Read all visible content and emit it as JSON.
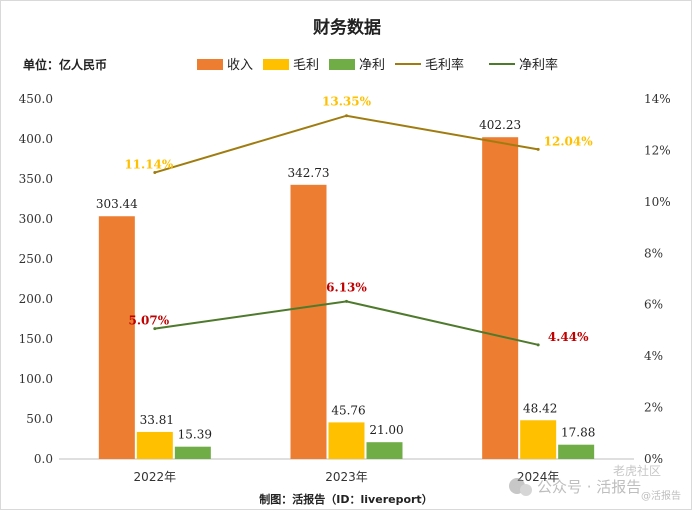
{
  "chart_data": {
    "type": "bar",
    "title": "财务数据",
    "unit_label": "单位：亿人民币",
    "credit": "制图：活报告（ID：livereport）",
    "watermark": "公众号 · 活报告",
    "watermark_corner": "@活报告",
    "watermark_small": "老虎社区",
    "categories": [
      "2022年",
      "2023年",
      "2024年"
    ],
    "series": [
      {
        "name": "收入",
        "kind": "bar",
        "axis": "left",
        "color": "#ED7D31",
        "values": [
          303.44,
          342.73,
          402.23
        ],
        "labels": [
          "303.44",
          "342.73",
          "402.23"
        ]
      },
      {
        "name": "毛利",
        "kind": "bar",
        "axis": "left",
        "color": "#FFC000",
        "values": [
          33.81,
          45.76,
          48.42
        ],
        "labels": [
          "33.81",
          "45.76",
          "48.42"
        ]
      },
      {
        "name": "净利",
        "kind": "bar",
        "axis": "left",
        "color": "#70AD47",
        "values": [
          15.39,
          21.0,
          17.88
        ],
        "labels": [
          "15.39",
          "21.00",
          "17.88"
        ]
      },
      {
        "name": "毛利率",
        "kind": "line",
        "axis": "right",
        "color": "#A07C10",
        "label_color": "#FFC000",
        "values": [
          11.14,
          13.35,
          12.04
        ],
        "labels": [
          "11.14%",
          "13.35%",
          "12.04%"
        ]
      },
      {
        "name": "净利率",
        "kind": "line",
        "axis": "right",
        "color": "#4E7A2C",
        "label_color": "#C00000",
        "values": [
          5.07,
          6.13,
          4.44
        ],
        "labels": [
          "5.07%",
          "6.13%",
          "4.44%"
        ]
      }
    ],
    "y_left": {
      "min": 0,
      "max": 450,
      "ticks": [
        "0.0",
        "50.0",
        "100.0",
        "150.0",
        "200.0",
        "250.0",
        "300.0",
        "350.0",
        "400.0",
        "450.0"
      ]
    },
    "y_right": {
      "min": 0,
      "max": 14,
      "ticks": [
        "0%",
        "2%",
        "4%",
        "6%",
        "8%",
        "10%",
        "12%",
        "14%"
      ]
    },
    "grid": false,
    "legend_position": "top"
  }
}
